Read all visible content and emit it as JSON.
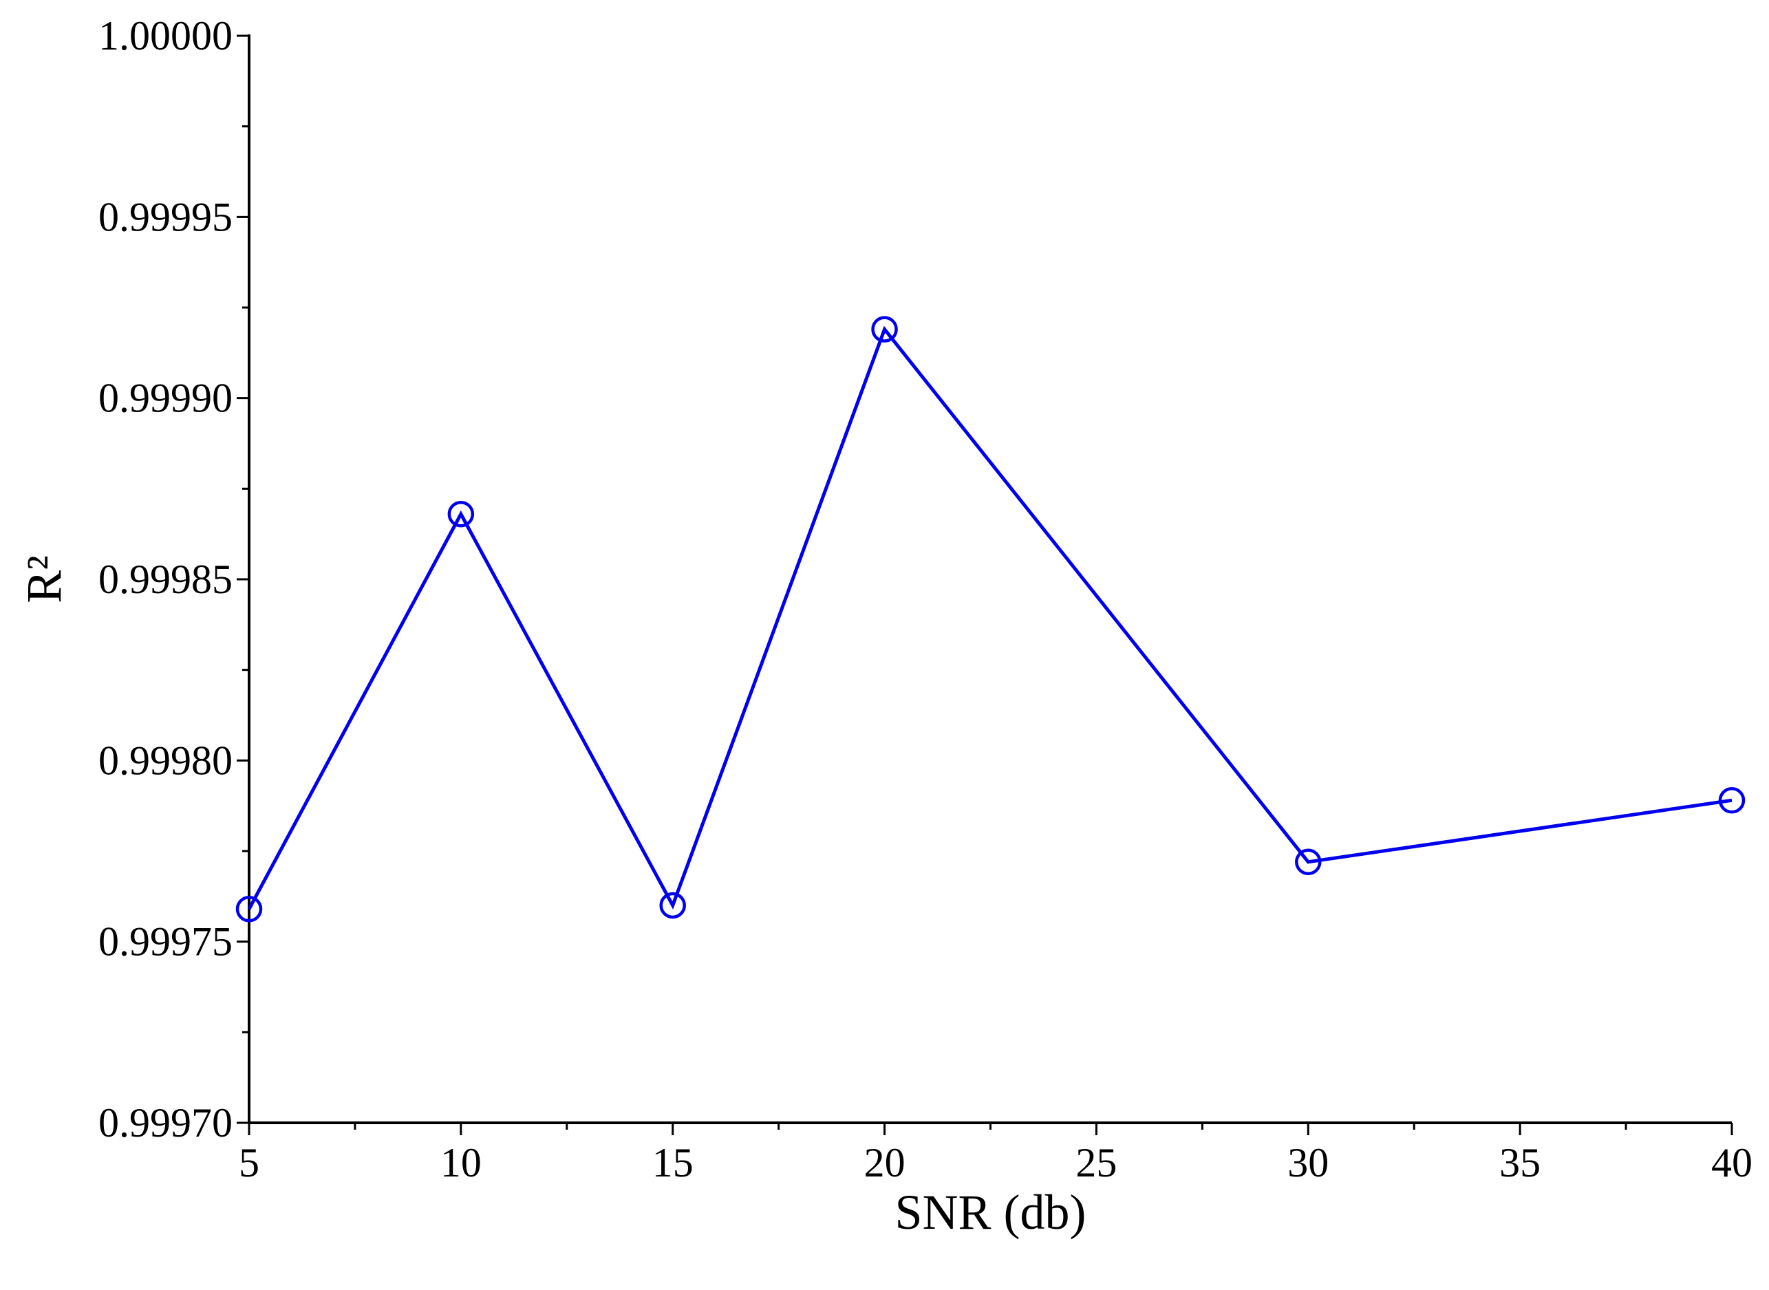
{
  "chart_data": {
    "type": "line",
    "title": "",
    "xlabel": "SNR (db)",
    "ylabel": "R²",
    "x": [
      5,
      10,
      15,
      20,
      30,
      40
    ],
    "series": [
      {
        "values": [
          0.999759,
          0.999868,
          0.99976,
          0.999919,
          0.999772,
          0.999789
        ],
        "color": "#0000ee",
        "marker": "open-circle"
      }
    ],
    "xlim": [
      5,
      40
    ],
    "ylim": [
      0.9997,
      1.0
    ],
    "xticks": [
      5,
      10,
      15,
      20,
      25,
      30,
      35,
      40
    ],
    "xtick_labels": [
      "5",
      "10",
      "15",
      "20",
      "25",
      "30",
      "35",
      "40"
    ],
    "yticks": [
      0.9997,
      0.99975,
      0.9998,
      0.99985,
      0.9999,
      0.99995,
      1.0
    ],
    "ytick_labels": [
      "0.99970",
      "0.99975",
      "0.99980",
      "0.99985",
      "0.99990",
      "0.99995",
      "1.00000"
    ],
    "minor_ticks": true,
    "grid": false,
    "legend": "none"
  }
}
